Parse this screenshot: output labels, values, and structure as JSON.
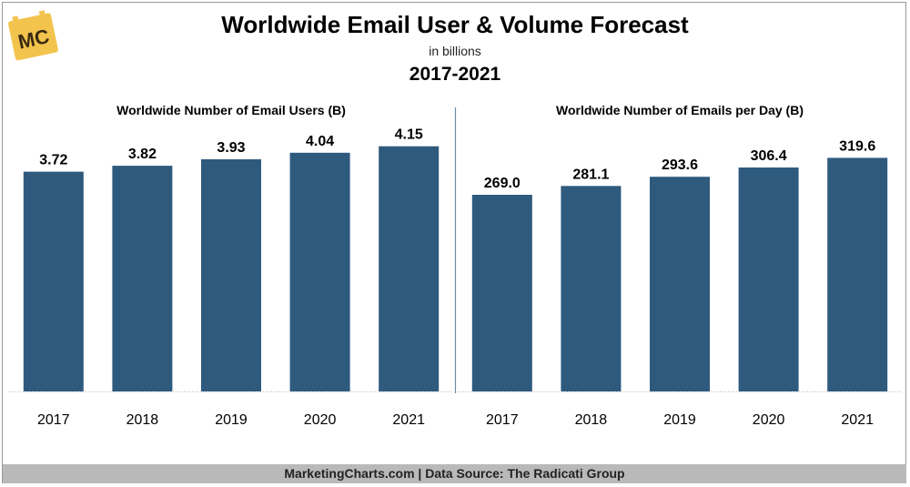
{
  "header": {
    "title": "Worldwide Email User & Volume Forecast",
    "subtitle": "in billions",
    "period": "2017-2021"
  },
  "logo": {
    "text": "MC",
    "color": "#f2c44e"
  },
  "footer": {
    "text": "MarketingCharts.com | Data Source: The Radicati Group"
  },
  "colors": {
    "bar": "#2e5a7e",
    "divider": "#6f8aa0"
  },
  "chart_data": [
    {
      "type": "bar",
      "title": "Worldwide Number of Email Users (B)",
      "categories": [
        "2017",
        "2018",
        "2019",
        "2020",
        "2021"
      ],
      "values": [
        3.72,
        3.82,
        3.93,
        4.04,
        4.15
      ],
      "value_labels": [
        "3.72",
        "3.82",
        "3.93",
        "4.04",
        "4.15"
      ],
      "ylim": [
        0,
        4.9
      ],
      "grid": false
    },
    {
      "type": "bar",
      "title": "Worldwide Number of Emails per Day (B)",
      "categories": [
        "2017",
        "2018",
        "2019",
        "2020",
        "2021"
      ],
      "values": [
        269.0,
        281.1,
        293.6,
        306.4,
        319.6
      ],
      "value_labels": [
        "269.0",
        "281.1",
        "293.6",
        "306.4",
        "319.6"
      ],
      "ylim": [
        0,
        396
      ],
      "grid": false
    }
  ]
}
